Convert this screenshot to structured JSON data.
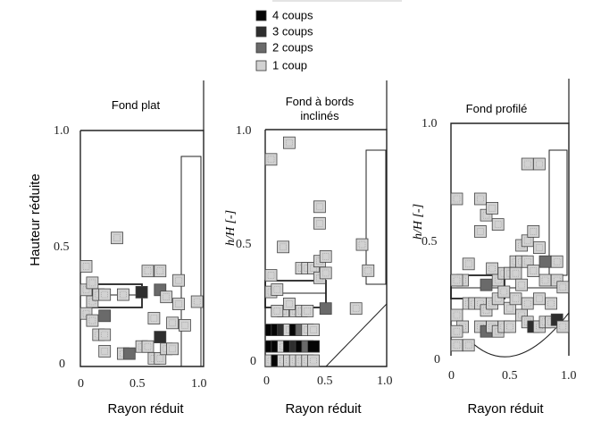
{
  "legend": [
    {
      "label": "4 coups",
      "hits": 4
    },
    {
      "label": "3 coups",
      "hits": 3
    },
    {
      "label": "2 coups",
      "hits": 2
    },
    {
      "label": "1 coup",
      "hits": 1
    }
  ],
  "shade_colors": {
    "1": "#d2d2d2",
    "2": "#6a6a6a",
    "3": "#2e2e2e",
    "4": "#050505"
  },
  "panels": [
    {
      "title": "Fond plat",
      "xlabel": "Rayon réduit",
      "ylabel": "Hauteur réduite",
      "ylabel_style": "sans",
      "xticks": [
        "0",
        "0.5",
        "1.0"
      ],
      "yticks": [
        "0",
        "0.5",
        "1.0"
      ],
      "bottom": "flat",
      "grid_cells": [
        [
          0.0,
          0.4,
          1
        ],
        [
          0.0,
          0.3,
          1
        ],
        [
          0.0,
          0.2,
          1
        ],
        [
          0.05,
          0.33,
          1
        ],
        [
          0.05,
          0.25,
          1
        ],
        [
          0.05,
          0.17,
          1
        ],
        [
          0.1,
          0.28,
          1
        ],
        [
          0.1,
          0.11,
          1
        ],
        [
          0.15,
          0.28,
          1
        ],
        [
          0.15,
          0.19,
          2
        ],
        [
          0.15,
          0.11,
          1
        ],
        [
          0.15,
          0.04,
          1
        ],
        [
          0.25,
          0.52,
          1
        ],
        [
          0.3,
          0.28,
          1
        ],
        [
          0.3,
          0.03,
          1
        ],
        [
          0.35,
          0.03,
          2
        ],
        [
          0.45,
          0.29,
          3
        ],
        [
          0.45,
          0.06,
          1
        ],
        [
          0.5,
          0.38,
          1
        ],
        [
          0.5,
          0.06,
          1
        ],
        [
          0.55,
          0.18,
          1
        ],
        [
          0.55,
          0.01,
          1
        ],
        [
          0.6,
          0.38,
          1
        ],
        [
          0.6,
          0.3,
          2
        ],
        [
          0.6,
          0.1,
          3
        ],
        [
          0.6,
          0.01,
          1
        ],
        [
          0.65,
          0.27,
          1
        ],
        [
          0.65,
          0.05,
          1
        ],
        [
          0.7,
          0.16,
          1
        ],
        [
          0.7,
          0.05,
          1
        ],
        [
          0.75,
          0.34,
          1
        ],
        [
          0.75,
          0.24,
          1
        ],
        [
          0.8,
          0.15,
          1
        ],
        [
          0.9,
          0.25,
          1
        ]
      ]
    },
    {
      "title": "Fond à bords inclinés",
      "xlabel": "Rayon réduit",
      "ylabel": "h/H [-]",
      "ylabel_style": "serif",
      "xticks": [
        "0",
        "0.5",
        "1.0"
      ],
      "yticks": [
        "0",
        "0.5",
        "1.0"
      ],
      "bottom": "inclined",
      "grid_cells": [
        [
          0.0,
          0.85,
          1
        ],
        [
          0.15,
          0.92,
          1
        ],
        [
          0.1,
          0.48,
          1
        ],
        [
          0.4,
          0.65,
          1
        ],
        [
          0.4,
          0.58,
          1
        ],
        [
          0.25,
          0.39,
          1
        ],
        [
          0.3,
          0.39,
          1
        ],
        [
          0.35,
          0.39,
          1
        ],
        [
          0.4,
          0.42,
          1
        ],
        [
          0.4,
          0.35,
          1
        ],
        [
          0.45,
          0.44,
          1
        ],
        [
          0.45,
          0.37,
          1
        ],
        [
          0.75,
          0.49,
          1
        ],
        [
          0.8,
          0.38,
          1
        ],
        [
          0.0,
          0.36,
          1
        ],
        [
          0.0,
          0.29,
          1
        ],
        [
          0.05,
          0.3,
          1
        ],
        [
          0.45,
          0.22,
          2
        ],
        [
          0.7,
          0.22,
          1
        ],
        [
          0.1,
          0.21,
          1
        ],
        [
          0.2,
          0.21,
          1
        ],
        [
          0.25,
          0.21,
          1
        ],
        [
          0.3,
          0.21,
          1
        ],
        [
          0.05,
          0.21,
          1
        ],
        [
          0.15,
          0.24,
          1
        ],
        [
          0.0,
          0.13,
          4
        ],
        [
          0.05,
          0.13,
          4
        ],
        [
          0.1,
          0.13,
          3
        ],
        [
          0.15,
          0.13,
          1
        ],
        [
          0.2,
          0.13,
          4
        ],
        [
          0.25,
          0.13,
          2
        ],
        [
          0.3,
          0.13,
          1
        ],
        [
          0.35,
          0.13,
          1
        ],
        [
          0.0,
          0.06,
          4
        ],
        [
          0.05,
          0.06,
          4
        ],
        [
          0.1,
          0.06,
          1
        ],
        [
          0.15,
          0.06,
          4
        ],
        [
          0.2,
          0.06,
          3
        ],
        [
          0.25,
          0.06,
          4
        ],
        [
          0.3,
          0.06,
          2
        ],
        [
          0.35,
          0.06,
          4
        ],
        [
          0.0,
          0.0,
          1
        ],
        [
          0.05,
          0.0,
          4
        ],
        [
          0.1,
          0.0,
          1
        ],
        [
          0.15,
          0.0,
          1
        ],
        [
          0.2,
          0.0,
          1
        ],
        [
          0.25,
          0.0,
          1
        ],
        [
          0.3,
          0.0,
          1
        ],
        [
          0.35,
          0.0,
          1
        ]
      ]
    },
    {
      "title": "Fond profilé",
      "xlabel": "Rayon réduit",
      "ylabel": "h/H [-]",
      "ylabel_style": "serif",
      "xticks": [
        "0",
        "0.5",
        "1.0"
      ],
      "yticks": [
        "0",
        "0.5",
        "1.0"
      ],
      "bottom": "profiled",
      "grid_cells": [
        [
          0.0,
          0.65,
          1
        ],
        [
          0.2,
          0.65,
          1
        ],
        [
          0.25,
          0.58,
          1
        ],
        [
          0.2,
          0.51,
          1
        ],
        [
          0.3,
          0.61,
          1
        ],
        [
          0.35,
          0.54,
          1
        ],
        [
          0.6,
          0.8,
          1
        ],
        [
          0.7,
          0.8,
          1
        ],
        [
          0.55,
          0.45,
          1
        ],
        [
          0.6,
          0.47,
          1
        ],
        [
          0.5,
          0.38,
          1
        ],
        [
          0.55,
          0.38,
          1
        ],
        [
          0.65,
          0.51,
          1
        ],
        [
          0.7,
          0.44,
          1
        ],
        [
          0.75,
          0.38,
          2
        ],
        [
          0.85,
          0.38,
          1
        ],
        [
          0.1,
          0.37,
          1
        ],
        [
          0.05,
          0.3,
          1
        ],
        [
          0.0,
          0.3,
          1
        ],
        [
          0.3,
          0.35,
          1
        ],
        [
          0.25,
          0.28,
          2
        ],
        [
          0.35,
          0.3,
          1
        ],
        [
          0.4,
          0.33,
          1
        ],
        [
          0.45,
          0.33,
          1
        ],
        [
          0.5,
          0.33,
          1
        ],
        [
          0.55,
          0.28,
          1
        ],
        [
          0.6,
          0.38,
          1
        ],
        [
          0.65,
          0.34,
          1
        ],
        [
          0.75,
          0.3,
          1
        ],
        [
          0.85,
          0.3,
          1
        ],
        [
          0.9,
          0.27,
          1
        ],
        [
          0.1,
          0.2,
          1
        ],
        [
          0.15,
          0.2,
          1
        ],
        [
          0.2,
          0.2,
          1
        ],
        [
          0.25,
          0.17,
          1
        ],
        [
          0.3,
          0.2,
          1
        ],
        [
          0.35,
          0.22,
          1
        ],
        [
          0.4,
          0.25,
          1
        ],
        [
          0.45,
          0.18,
          1
        ],
        [
          0.5,
          0.22,
          1
        ],
        [
          0.55,
          0.15,
          1
        ],
        [
          0.6,
          0.2,
          1
        ],
        [
          0.7,
          0.22,
          1
        ],
        [
          0.8,
          0.2,
          1
        ],
        [
          0.0,
          0.15,
          1
        ],
        [
          0.05,
          0.1,
          1
        ],
        [
          0.0,
          0.08,
          1
        ],
        [
          0.2,
          0.1,
          1
        ],
        [
          0.25,
          0.08,
          2
        ],
        [
          0.3,
          0.1,
          1
        ],
        [
          0.35,
          0.08,
          1
        ],
        [
          0.4,
          0.1,
          1
        ],
        [
          0.45,
          0.1,
          1
        ],
        [
          0.6,
          0.12,
          1
        ],
        [
          0.65,
          0.1,
          3
        ],
        [
          0.7,
          0.1,
          1
        ],
        [
          0.75,
          0.12,
          1
        ],
        [
          0.8,
          0.12,
          1
        ],
        [
          0.85,
          0.13,
          3
        ],
        [
          0.0,
          0.02,
          1
        ],
        [
          0.1,
          0.02,
          1
        ],
        [
          0.9,
          0.1,
          1
        ]
      ]
    }
  ]
}
